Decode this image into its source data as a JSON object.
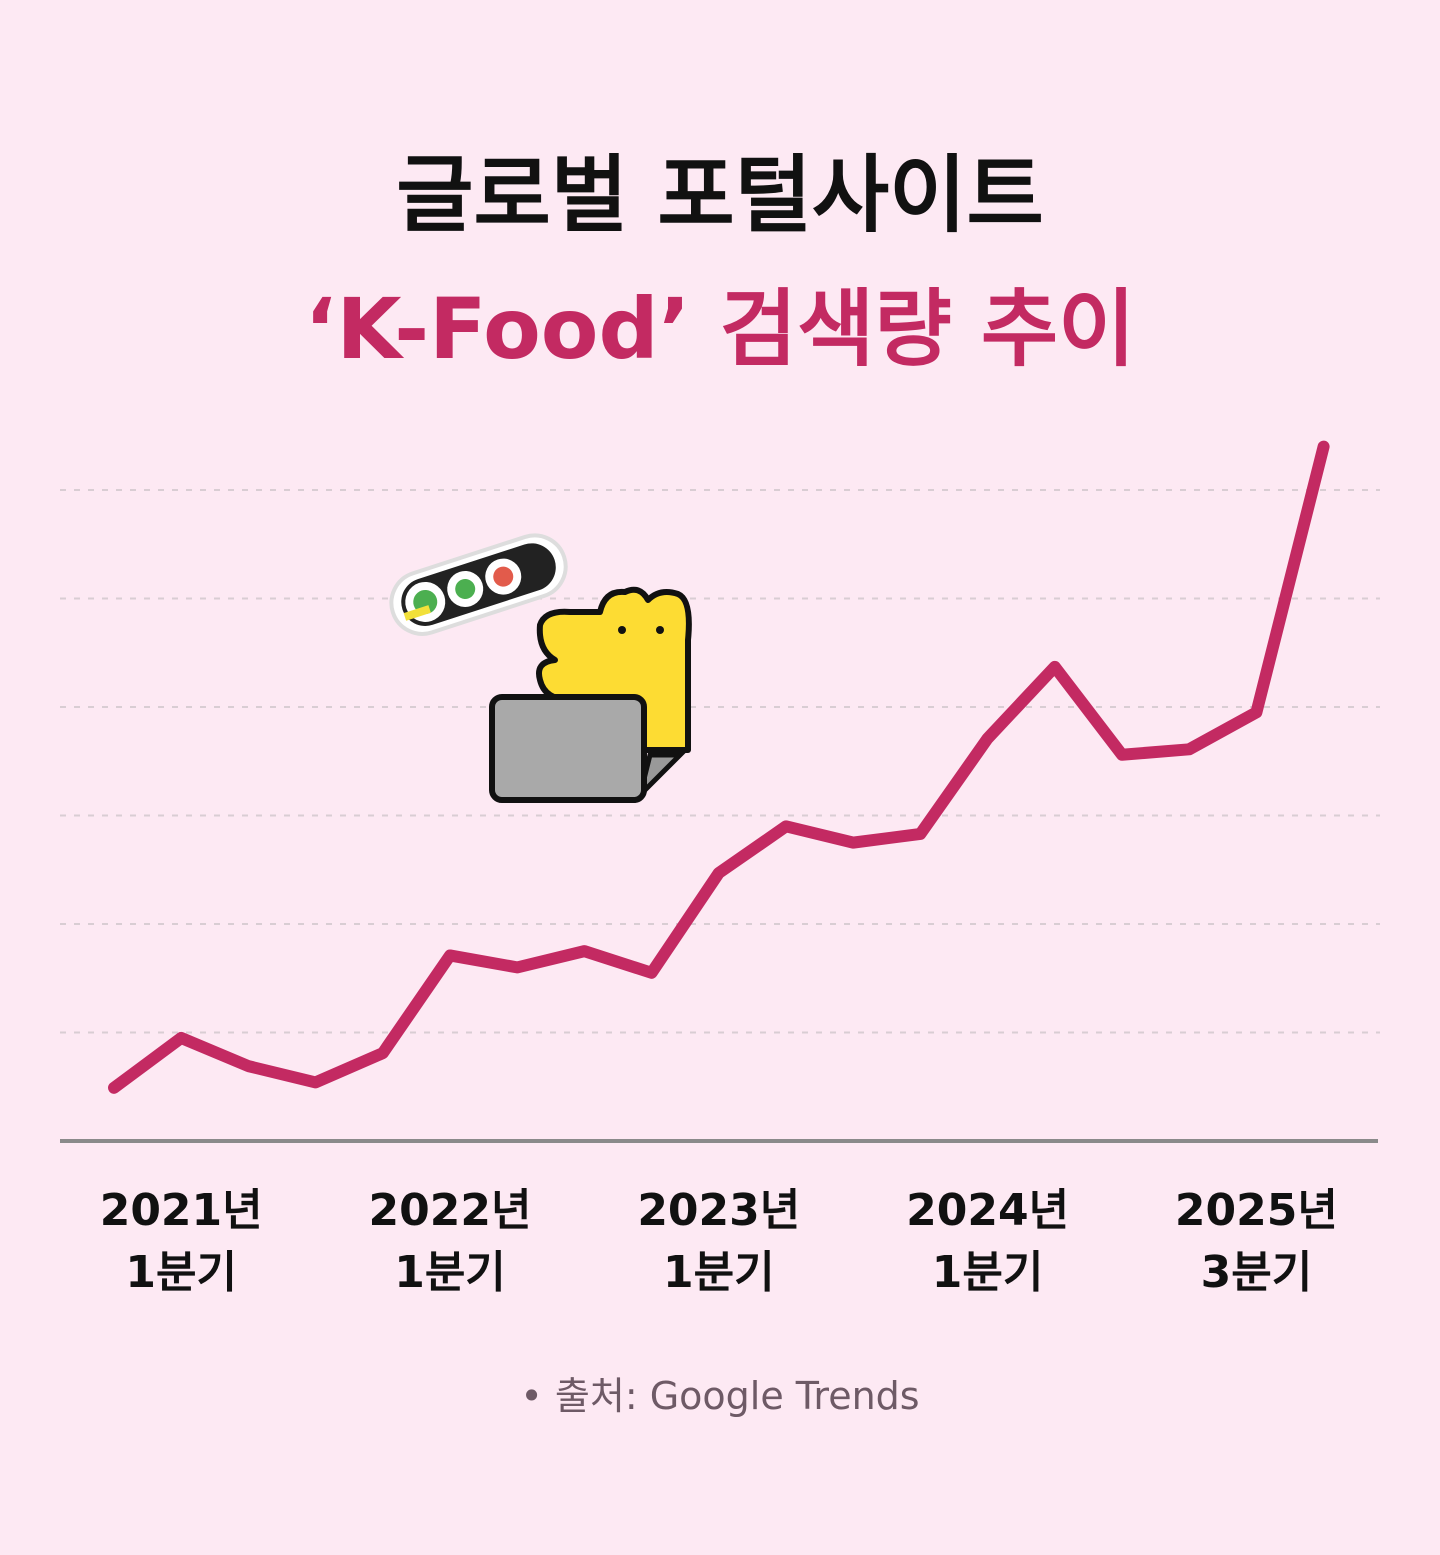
{
  "chart_data": {
    "type": "line",
    "title": "글로벌 포털사이트",
    "subtitle": "‘K-Food’ 검색량 추이",
    "source": "• 출처: Google Trends",
    "categories": [
      null,
      "2021년\n1분기",
      null,
      null,
      null,
      "2022년\n1분기",
      null,
      null,
      null,
      "2023년\n1분기",
      null,
      null,
      null,
      "2024년\n1분기",
      null,
      null,
      null,
      "2025년\n3분기",
      null
    ],
    "values": [
      0.49,
      0.95,
      0.69,
      0.54,
      0.81,
      1.71,
      1.6,
      1.75,
      1.55,
      2.47,
      2.9,
      2.75,
      2.83,
      3.71,
      4.37,
      3.56,
      3.61,
      3.95,
      6.4
    ],
    "color": "#c32a62",
    "ylim": [
      0,
      7
    ],
    "yticks": [
      1,
      2,
      3,
      4,
      5,
      6
    ],
    "grid": true
  }
}
